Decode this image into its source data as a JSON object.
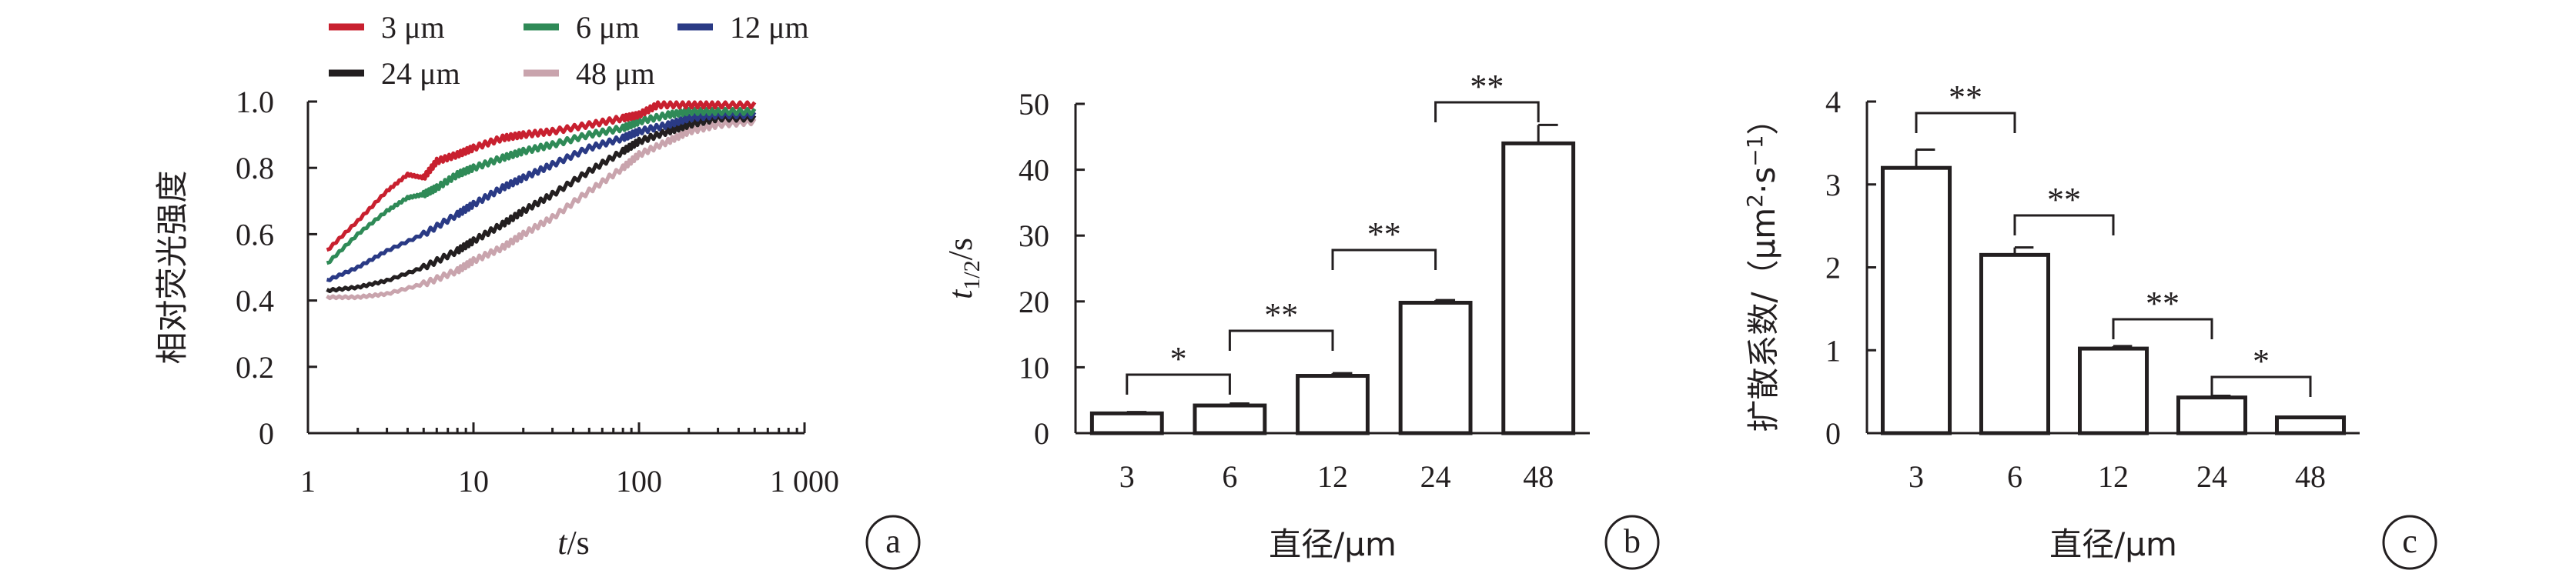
{
  "chart_data": [
    {
      "panel": "a",
      "type": "line",
      "xlabel": "t/s",
      "ylabel": "相对荧光强度",
      "xscale": "log",
      "xlim": [
        1,
        1000
      ],
      "ylim": [
        0,
        1.0
      ],
      "xticks": [
        "1",
        "10",
        "100",
        "1 000"
      ],
      "yticks": [
        "0",
        "0.2",
        "0.4",
        "0.6",
        "0.8",
        "1.0"
      ],
      "legend": "top, two rows",
      "series": [
        {
          "name": "3 μm",
          "color": "#c8202f",
          "x": [
            1.3,
            2,
            3,
            4,
            5,
            6,
            8,
            10,
            15,
            20,
            30,
            50,
            80,
            100,
            130,
            200,
            300,
            500
          ],
          "y": [
            0.55,
            0.64,
            0.73,
            0.78,
            0.77,
            0.82,
            0.84,
            0.86,
            0.89,
            0.9,
            0.91,
            0.93,
            0.95,
            0.96,
            0.99,
            0.99,
            0.99,
            0.99
          ]
        },
        {
          "name": "6 μm",
          "color": "#2f8a57",
          "x": [
            1.3,
            2,
            3,
            4,
            5,
            6,
            8,
            10,
            15,
            20,
            30,
            50,
            80,
            100,
            150,
            200,
            300,
            500
          ],
          "y": [
            0.51,
            0.6,
            0.67,
            0.71,
            0.72,
            0.74,
            0.78,
            0.8,
            0.83,
            0.85,
            0.87,
            0.9,
            0.92,
            0.94,
            0.96,
            0.97,
            0.97,
            0.97
          ]
        },
        {
          "name": "12 μm",
          "color": "#2a3a85",
          "x": [
            1.3,
            2,
            3,
            5,
            8,
            10,
            15,
            20,
            30,
            50,
            80,
            100,
            150,
            200,
            300,
            500
          ],
          "y": [
            0.46,
            0.5,
            0.55,
            0.6,
            0.66,
            0.69,
            0.74,
            0.77,
            0.81,
            0.86,
            0.89,
            0.91,
            0.93,
            0.95,
            0.96,
            0.96
          ]
        },
        {
          "name": "24 μm",
          "color": "#231f20",
          "x": [
            1.3,
            2,
            3,
            5,
            8,
            10,
            15,
            20,
            30,
            50,
            80,
            100,
            150,
            200,
            300,
            500
          ],
          "y": [
            0.43,
            0.44,
            0.46,
            0.5,
            0.55,
            0.58,
            0.63,
            0.67,
            0.72,
            0.79,
            0.85,
            0.88,
            0.91,
            0.93,
            0.95,
            0.95
          ]
        },
        {
          "name": "48 μm",
          "color": "#c9a4ad",
          "x": [
            1.3,
            2,
            3,
            5,
            8,
            10,
            15,
            20,
            30,
            50,
            80,
            100,
            150,
            200,
            300,
            500
          ],
          "y": [
            0.41,
            0.41,
            0.42,
            0.45,
            0.49,
            0.52,
            0.56,
            0.6,
            0.65,
            0.73,
            0.8,
            0.84,
            0.88,
            0.91,
            0.93,
            0.94
          ]
        }
      ]
    },
    {
      "panel": "b",
      "type": "bar",
      "xlabel": "直径/μm",
      "ylabel_main": "t",
      "ylabel_sub": "1/2",
      "ylabel_unit": "/s",
      "ylim": [
        0,
        50
      ],
      "yticks": [
        "0",
        "10",
        "20",
        "30",
        "40",
        "50"
      ],
      "categories": [
        "3",
        "6",
        "12",
        "24",
        "48"
      ],
      "values": [
        3,
        4.2,
        8.7,
        19.8,
        44
      ],
      "errors": [
        0.2,
        0.3,
        0.4,
        0.4,
        2.8
      ],
      "significance": [
        {
          "from": 0,
          "to": 1,
          "label": "*"
        },
        {
          "from": 1,
          "to": 2,
          "label": "**"
        },
        {
          "from": 2,
          "to": 3,
          "label": "**"
        },
        {
          "from": 3,
          "to": 4,
          "label": "**"
        }
      ]
    },
    {
      "panel": "c",
      "type": "bar",
      "xlabel": "直径/μm",
      "ylabel_main": "扩散系数/（μm",
      "ylabel_tail": "·s",
      "ylabel_sup1": "2",
      "ylabel_sup2": "−1",
      "ylabel_close": "）",
      "ylim": [
        0,
        4
      ],
      "yticks": [
        "0",
        "1",
        "2",
        "3",
        "4"
      ],
      "categories": [
        "3",
        "6",
        "12",
        "24",
        "48"
      ],
      "values": [
        3.2,
        2.15,
        1.02,
        0.43,
        0.19
      ],
      "errors": [
        0.22,
        0.09,
        0.03,
        0.02,
        0.01
      ],
      "significance": [
        {
          "from": 0,
          "to": 1,
          "label": "**"
        },
        {
          "from": 1,
          "to": 2,
          "label": "**"
        },
        {
          "from": 2,
          "to": 3,
          "label": "**"
        },
        {
          "from": 3,
          "to": 4,
          "label": "*"
        }
      ]
    }
  ],
  "panel_labels": [
    "a",
    "b",
    "c"
  ]
}
